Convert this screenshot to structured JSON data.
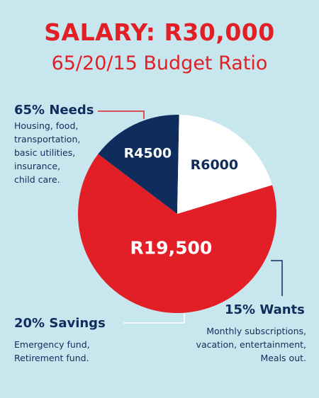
{
  "title": "SALARY: R30,000",
  "subtitle": "65/20/15 Budget Ratio",
  "colors": {
    "needs": "#e21e26",
    "wants": "#0f2d5c",
    "savings": "#ffffff",
    "background": "#c8e6ee"
  },
  "categories": {
    "needs": {
      "title": "65% Needs",
      "description": [
        "Housing, food,",
        "transportation,",
        "basic utilities,",
        "insurance,",
        "child care."
      ]
    },
    "savings": {
      "title": "20% Savings",
      "description": [
        "Emergency fund,",
        "Retirement fund."
      ]
    },
    "wants": {
      "title": "15% Wants",
      "description": [
        "Monthly subscriptions,",
        "vacation, entertainment,",
        "Meals out."
      ]
    }
  },
  "chart_data": {
    "type": "pie",
    "total": 30000,
    "slices": [
      {
        "name": "Needs",
        "percent": 65,
        "value": 19500,
        "label": "R19,500"
      },
      {
        "name": "Wants",
        "percent": 15,
        "value": 4500,
        "label": "R4500"
      },
      {
        "name": "Savings",
        "percent": 20,
        "value": 6000,
        "label": "R6000"
      }
    ]
  }
}
